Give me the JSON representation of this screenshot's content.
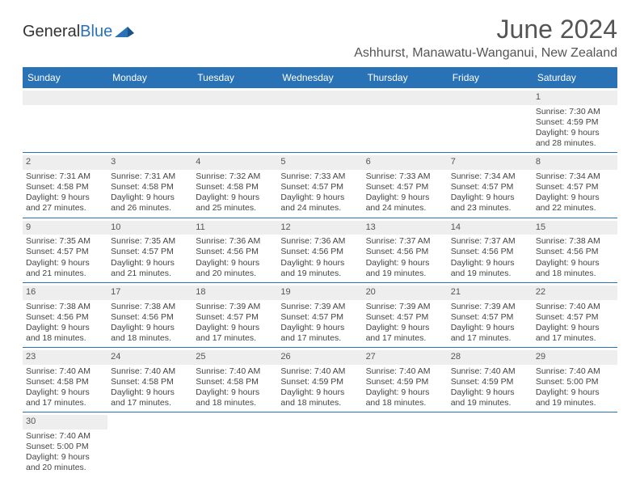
{
  "logo": {
    "text_general": "General",
    "text_blue": "Blue"
  },
  "title": "June 2024",
  "location": "Ashhurst, Manawatu-Wanganui, New Zealand",
  "colors": {
    "header_bg": "#2972b6",
    "header_text": "#ffffff",
    "daynum_bg": "#eeeeee",
    "text": "#444444",
    "title_text": "#555555",
    "row_border": "#2972b6"
  },
  "dayHeaders": [
    "Sunday",
    "Monday",
    "Tuesday",
    "Wednesday",
    "Thursday",
    "Friday",
    "Saturday"
  ],
  "weeks": [
    [
      {
        "blank": true
      },
      {
        "blank": true
      },
      {
        "blank": true
      },
      {
        "blank": true
      },
      {
        "blank": true
      },
      {
        "blank": true
      },
      {
        "day": "1",
        "sunrise": "Sunrise: 7:30 AM",
        "sunset": "Sunset: 4:59 PM",
        "dl1": "Daylight: 9 hours",
        "dl2": "and 28 minutes."
      }
    ],
    [
      {
        "day": "2",
        "sunrise": "Sunrise: 7:31 AM",
        "sunset": "Sunset: 4:58 PM",
        "dl1": "Daylight: 9 hours",
        "dl2": "and 27 minutes."
      },
      {
        "day": "3",
        "sunrise": "Sunrise: 7:31 AM",
        "sunset": "Sunset: 4:58 PM",
        "dl1": "Daylight: 9 hours",
        "dl2": "and 26 minutes."
      },
      {
        "day": "4",
        "sunrise": "Sunrise: 7:32 AM",
        "sunset": "Sunset: 4:58 PM",
        "dl1": "Daylight: 9 hours",
        "dl2": "and 25 minutes."
      },
      {
        "day": "5",
        "sunrise": "Sunrise: 7:33 AM",
        "sunset": "Sunset: 4:57 PM",
        "dl1": "Daylight: 9 hours",
        "dl2": "and 24 minutes."
      },
      {
        "day": "6",
        "sunrise": "Sunrise: 7:33 AM",
        "sunset": "Sunset: 4:57 PM",
        "dl1": "Daylight: 9 hours",
        "dl2": "and 24 minutes."
      },
      {
        "day": "7",
        "sunrise": "Sunrise: 7:34 AM",
        "sunset": "Sunset: 4:57 PM",
        "dl1": "Daylight: 9 hours",
        "dl2": "and 23 minutes."
      },
      {
        "day": "8",
        "sunrise": "Sunrise: 7:34 AM",
        "sunset": "Sunset: 4:57 PM",
        "dl1": "Daylight: 9 hours",
        "dl2": "and 22 minutes."
      }
    ],
    [
      {
        "day": "9",
        "sunrise": "Sunrise: 7:35 AM",
        "sunset": "Sunset: 4:57 PM",
        "dl1": "Daylight: 9 hours",
        "dl2": "and 21 minutes."
      },
      {
        "day": "10",
        "sunrise": "Sunrise: 7:35 AM",
        "sunset": "Sunset: 4:57 PM",
        "dl1": "Daylight: 9 hours",
        "dl2": "and 21 minutes."
      },
      {
        "day": "11",
        "sunrise": "Sunrise: 7:36 AM",
        "sunset": "Sunset: 4:56 PM",
        "dl1": "Daylight: 9 hours",
        "dl2": "and 20 minutes."
      },
      {
        "day": "12",
        "sunrise": "Sunrise: 7:36 AM",
        "sunset": "Sunset: 4:56 PM",
        "dl1": "Daylight: 9 hours",
        "dl2": "and 19 minutes."
      },
      {
        "day": "13",
        "sunrise": "Sunrise: 7:37 AM",
        "sunset": "Sunset: 4:56 PM",
        "dl1": "Daylight: 9 hours",
        "dl2": "and 19 minutes."
      },
      {
        "day": "14",
        "sunrise": "Sunrise: 7:37 AM",
        "sunset": "Sunset: 4:56 PM",
        "dl1": "Daylight: 9 hours",
        "dl2": "and 19 minutes."
      },
      {
        "day": "15",
        "sunrise": "Sunrise: 7:38 AM",
        "sunset": "Sunset: 4:56 PM",
        "dl1": "Daylight: 9 hours",
        "dl2": "and 18 minutes."
      }
    ],
    [
      {
        "day": "16",
        "sunrise": "Sunrise: 7:38 AM",
        "sunset": "Sunset: 4:56 PM",
        "dl1": "Daylight: 9 hours",
        "dl2": "and 18 minutes."
      },
      {
        "day": "17",
        "sunrise": "Sunrise: 7:38 AM",
        "sunset": "Sunset: 4:56 PM",
        "dl1": "Daylight: 9 hours",
        "dl2": "and 18 minutes."
      },
      {
        "day": "18",
        "sunrise": "Sunrise: 7:39 AM",
        "sunset": "Sunset: 4:57 PM",
        "dl1": "Daylight: 9 hours",
        "dl2": "and 17 minutes."
      },
      {
        "day": "19",
        "sunrise": "Sunrise: 7:39 AM",
        "sunset": "Sunset: 4:57 PM",
        "dl1": "Daylight: 9 hours",
        "dl2": "and 17 minutes."
      },
      {
        "day": "20",
        "sunrise": "Sunrise: 7:39 AM",
        "sunset": "Sunset: 4:57 PM",
        "dl1": "Daylight: 9 hours",
        "dl2": "and 17 minutes."
      },
      {
        "day": "21",
        "sunrise": "Sunrise: 7:39 AM",
        "sunset": "Sunset: 4:57 PM",
        "dl1": "Daylight: 9 hours",
        "dl2": "and 17 minutes."
      },
      {
        "day": "22",
        "sunrise": "Sunrise: 7:40 AM",
        "sunset": "Sunset: 4:57 PM",
        "dl1": "Daylight: 9 hours",
        "dl2": "and 17 minutes."
      }
    ],
    [
      {
        "day": "23",
        "sunrise": "Sunrise: 7:40 AM",
        "sunset": "Sunset: 4:58 PM",
        "dl1": "Daylight: 9 hours",
        "dl2": "and 17 minutes."
      },
      {
        "day": "24",
        "sunrise": "Sunrise: 7:40 AM",
        "sunset": "Sunset: 4:58 PM",
        "dl1": "Daylight: 9 hours",
        "dl2": "and 17 minutes."
      },
      {
        "day": "25",
        "sunrise": "Sunrise: 7:40 AM",
        "sunset": "Sunset: 4:58 PM",
        "dl1": "Daylight: 9 hours",
        "dl2": "and 18 minutes."
      },
      {
        "day": "26",
        "sunrise": "Sunrise: 7:40 AM",
        "sunset": "Sunset: 4:59 PM",
        "dl1": "Daylight: 9 hours",
        "dl2": "and 18 minutes."
      },
      {
        "day": "27",
        "sunrise": "Sunrise: 7:40 AM",
        "sunset": "Sunset: 4:59 PM",
        "dl1": "Daylight: 9 hours",
        "dl2": "and 18 minutes."
      },
      {
        "day": "28",
        "sunrise": "Sunrise: 7:40 AM",
        "sunset": "Sunset: 4:59 PM",
        "dl1": "Daylight: 9 hours",
        "dl2": "and 19 minutes."
      },
      {
        "day": "29",
        "sunrise": "Sunrise: 7:40 AM",
        "sunset": "Sunset: 5:00 PM",
        "dl1": "Daylight: 9 hours",
        "dl2": "and 19 minutes."
      }
    ],
    [
      {
        "day": "30",
        "sunrise": "Sunrise: 7:40 AM",
        "sunset": "Sunset: 5:00 PM",
        "dl1": "Daylight: 9 hours",
        "dl2": "and 20 minutes."
      },
      {
        "blank": true
      },
      {
        "blank": true
      },
      {
        "blank": true
      },
      {
        "blank": true
      },
      {
        "blank": true
      },
      {
        "blank": true
      }
    ]
  ]
}
